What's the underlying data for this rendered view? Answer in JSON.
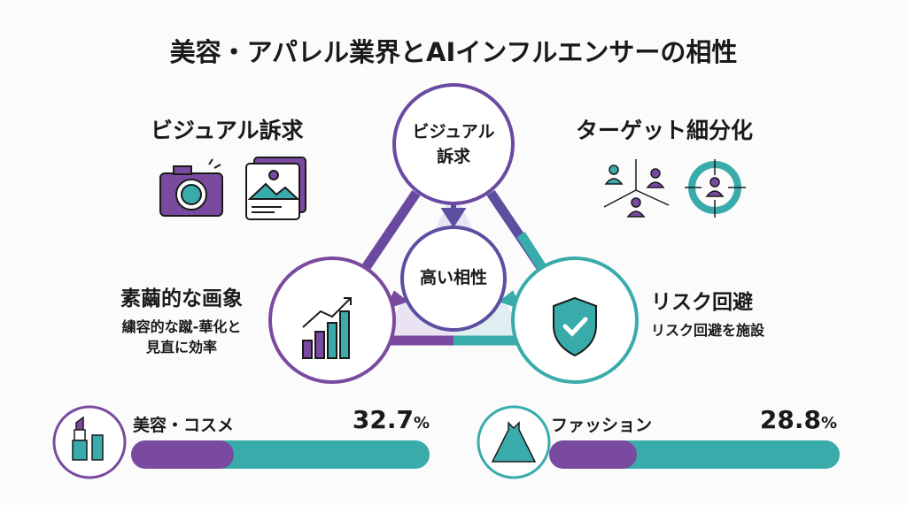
{
  "title": "美容・アパレル業界とAIインフルエンサーの相性",
  "colors": {
    "purple": "#7a4aa0",
    "indigo": "#5a4fa0",
    "teal": "#3aabab"
  },
  "top_left": {
    "heading": "ビジュアル訴求",
    "icons": [
      "camera-icon",
      "image-gallery-icon"
    ]
  },
  "top_right": {
    "heading": "ターゲット細分化",
    "icons": [
      "audience-segments-icon",
      "target-person-icon"
    ]
  },
  "diagram": {
    "top_node": "ビジュアル\n訴求",
    "center_node": "高い相性",
    "left_node_icon": "growth-chart-icon",
    "right_node_icon": "shield-check-icon"
  },
  "left_text": {
    "heading": "素繭的な画象",
    "lines": [
      "繍容的な蹴-華化と",
      "見直に効率"
    ]
  },
  "right_text": {
    "heading": "リスク回避",
    "lines": [
      "リスク回避を施設"
    ]
  },
  "stats": [
    {
      "label": "美容・コスメ",
      "value": "32.7",
      "unit": "%",
      "fill_percent": 32.7,
      "icon": "lipstick-icon"
    },
    {
      "label": "ファッション",
      "value": "28.8",
      "unit": "%",
      "fill_percent": 28.8,
      "icon": "dress-icon"
    }
  ]
}
